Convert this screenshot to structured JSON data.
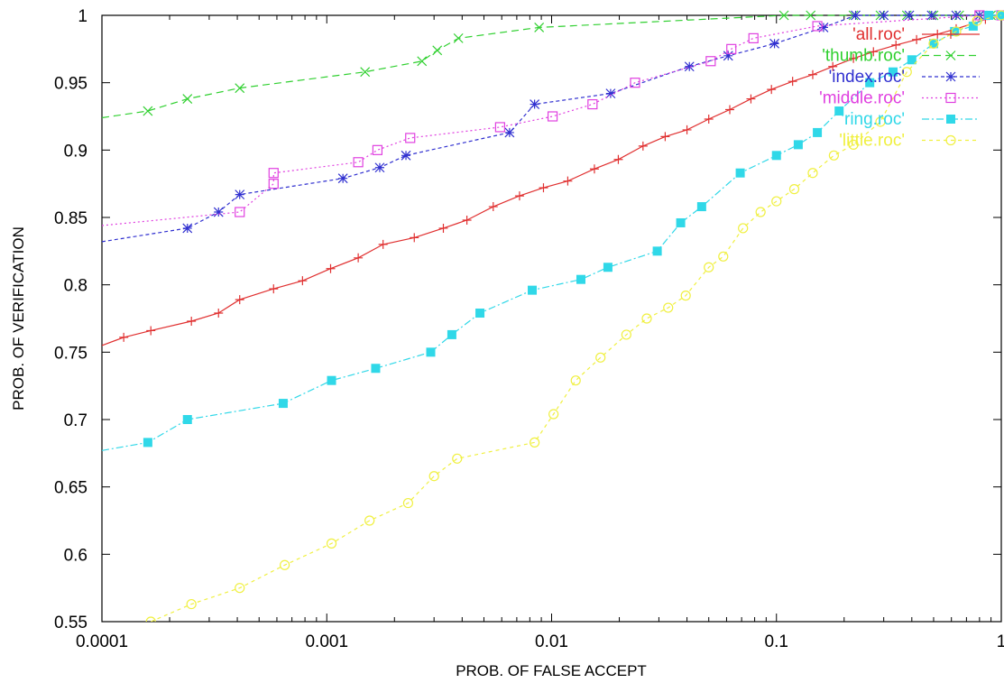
{
  "chart_data": {
    "type": "line",
    "xlabel": "PROB. OF FALSE ACCEPT",
    "ylabel": "PROB. OF VERIFICATION",
    "xscale": "log",
    "xlim": [
      0.0001,
      1
    ],
    "ylim": [
      0.55,
      1
    ],
    "x_ticks": [
      {
        "value": 0.0001,
        "label": "0.0001"
      },
      {
        "value": 0.001,
        "label": "0.001"
      },
      {
        "value": 0.01,
        "label": "0.01"
      },
      {
        "value": 0.1,
        "label": "0.1"
      },
      {
        "value": 1,
        "label": "1"
      }
    ],
    "y_ticks": [
      {
        "value": 0.55,
        "label": "0.55"
      },
      {
        "value": 0.6,
        "label": "0.6"
      },
      {
        "value": 0.65,
        "label": "0.65"
      },
      {
        "value": 0.7,
        "label": "0.7"
      },
      {
        "value": 0.75,
        "label": "0.75"
      },
      {
        "value": 0.8,
        "label": "0.8"
      },
      {
        "value": 0.85,
        "label": "0.85"
      },
      {
        "value": 0.9,
        "label": "0.9"
      },
      {
        "value": 0.95,
        "label": "0.95"
      },
      {
        "value": 1,
        "label": "1"
      }
    ],
    "grid": false,
    "legend_position": "top-right",
    "series": [
      {
        "name": "'all.roc'",
        "color": "#e03030",
        "marker": "plus",
        "dash": "",
        "x": [
          0.0001,
          0.000125,
          0.000165,
          0.00025,
          0.00033,
          0.00041,
          0.00058,
          0.00078,
          0.00104,
          0.00138,
          0.00178,
          0.00245,
          0.0033,
          0.0042,
          0.0055,
          0.0072,
          0.0092,
          0.0118,
          0.0155,
          0.0198,
          0.0255,
          0.032,
          0.04,
          0.05,
          0.062,
          0.077,
          0.095,
          0.118,
          0.145,
          0.178,
          0.22,
          0.27,
          0.34,
          0.42,
          0.52,
          0.63,
          0.75,
          0.85,
          1
        ],
        "y": [
          0.755,
          0.761,
          0.766,
          0.773,
          0.779,
          0.789,
          0.797,
          0.803,
          0.812,
          0.82,
          0.83,
          0.835,
          0.842,
          0.848,
          0.858,
          0.866,
          0.872,
          0.877,
          0.886,
          0.893,
          0.903,
          0.91,
          0.915,
          0.923,
          0.93,
          0.938,
          0.945,
          0.951,
          0.956,
          0.962,
          0.968,
          0.973,
          0.978,
          0.982,
          0.986,
          0.99,
          0.994,
          0.997,
          1.0
        ]
      },
      {
        "name": "'thumb.roc'",
        "color": "#30d030",
        "marker": "x",
        "dash": "8,5",
        "x": [
          0.0001,
          0.00016,
          0.00024,
          0.00041,
          0.00148,
          0.00265,
          0.0031,
          0.00385,
          0.0088,
          0.108,
          0.142,
          0.22,
          0.29,
          0.38,
          0.5,
          0.65,
          0.8,
          0.9,
          1
        ],
        "y": [
          0.924,
          0.929,
          0.938,
          0.946,
          0.958,
          0.966,
          0.974,
          0.983,
          0.991,
          1.0,
          1.0,
          1.0,
          1.0,
          1.0,
          1.0,
          1.0,
          1.0,
          1.0,
          1.0
        ]
      },
      {
        "name": "'index.roc'",
        "color": "#3030d0",
        "marker": "star",
        "dash": "4,3",
        "x": [
          0.0001,
          0.00024,
          0.00033,
          0.00041,
          0.00118,
          0.00172,
          0.00225,
          0.0065,
          0.0084,
          0.0183,
          0.041,
          0.061,
          0.098,
          0.162,
          0.225,
          0.3,
          0.39,
          0.49,
          0.63,
          0.8,
          1
        ],
        "y": [
          0.832,
          0.842,
          0.854,
          0.867,
          0.879,
          0.887,
          0.896,
          0.913,
          0.934,
          0.942,
          0.962,
          0.97,
          0.979,
          0.991,
          1.0,
          1.0,
          1.0,
          1.0,
          1.0,
          1.0,
          1.0
        ]
      },
      {
        "name": "'middle.roc'",
        "color": "#e040e0",
        "marker": "square",
        "dash": "2,3",
        "x": [
          0.0001,
          0.00041,
          0.00058,
          0.00058,
          0.00138,
          0.00168,
          0.00235,
          0.0059,
          0.0101,
          0.0152,
          0.0235,
          0.051,
          0.063,
          0.079,
          0.152,
          0.8,
          1
        ],
        "y": [
          0.844,
          0.854,
          0.875,
          0.883,
          0.891,
          0.9,
          0.909,
          0.917,
          0.925,
          0.934,
          0.95,
          0.966,
          0.975,
          0.983,
          0.992,
          1.0,
          1.0
        ]
      },
      {
        "name": "'ring.roc'",
        "color": "#30d8e8",
        "marker": "filled-square",
        "dash": "8,3,2,3",
        "x": [
          0.0001,
          0.00016,
          0.00024,
          0.00064,
          0.00105,
          0.00165,
          0.0029,
          0.0036,
          0.0048,
          0.0082,
          0.0135,
          0.0178,
          0.0295,
          0.0375,
          0.0465,
          0.069,
          0.1,
          0.125,
          0.152,
          0.19,
          0.26,
          0.33,
          0.4,
          0.5,
          0.62,
          0.75,
          0.88,
          1
        ],
        "y": [
          0.677,
          0.683,
          0.7,
          0.712,
          0.729,
          0.738,
          0.75,
          0.763,
          0.779,
          0.796,
          0.804,
          0.813,
          0.825,
          0.846,
          0.858,
          0.883,
          0.896,
          0.904,
          0.913,
          0.929,
          0.95,
          0.958,
          0.967,
          0.979,
          0.988,
          0.992,
          1.0,
          1.0
        ]
      },
      {
        "name": "'little.roc'",
        "color": "#f0f040",
        "marker": "circle",
        "dash": "4,4",
        "x": [
          0.000165,
          0.00025,
          0.00041,
          0.00065,
          0.00105,
          0.00155,
          0.0023,
          0.003,
          0.0038,
          0.0084,
          0.0102,
          0.0128,
          0.0165,
          0.0215,
          0.0265,
          0.033,
          0.0395,
          0.05,
          0.058,
          0.071,
          0.085,
          0.1,
          0.12,
          0.145,
          0.18,
          0.22,
          0.29,
          0.38,
          0.5,
          0.63,
          0.78,
          1
        ],
        "y": [
          0.55,
          0.563,
          0.575,
          0.592,
          0.608,
          0.625,
          0.638,
          0.658,
          0.671,
          0.683,
          0.704,
          0.729,
          0.746,
          0.763,
          0.775,
          0.783,
          0.792,
          0.813,
          0.821,
          0.842,
          0.854,
          0.862,
          0.871,
          0.883,
          0.896,
          0.904,
          0.921,
          0.958,
          0.979,
          0.988,
          0.996,
          1.0
        ]
      }
    ]
  }
}
